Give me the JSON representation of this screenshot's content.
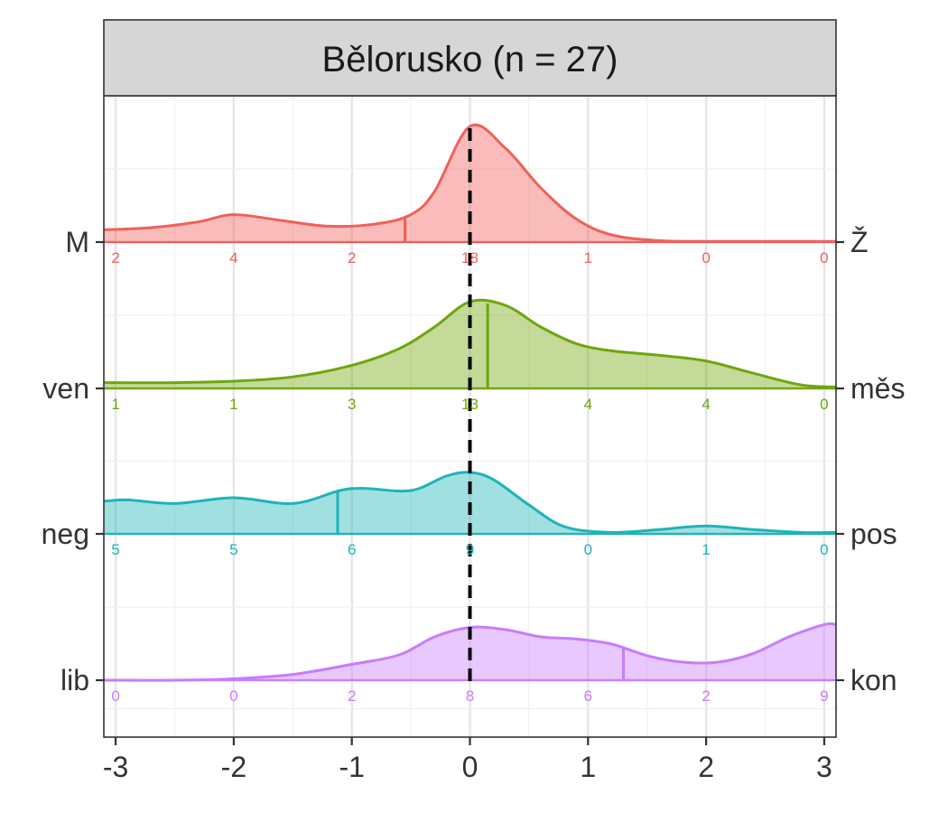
{
  "chart_data": {
    "type": "ridgeline",
    "title": "Bělorusko (n = 27)",
    "xlim": [
      -3.1,
      3.1
    ],
    "x_ticks": [
      -3,
      -2,
      -1,
      0,
      1,
      2,
      3
    ],
    "x_tick_labels": [
      "-3",
      "-2",
      "-1",
      "0",
      "1",
      "2",
      "3"
    ],
    "count_x": [
      -3,
      -2,
      -1,
      0,
      1,
      2,
      3
    ],
    "reference_line_x": 0,
    "grid": true,
    "series": [
      {
        "left_label": "lib",
        "right_label": "kon",
        "color": "#c77cff",
        "counts": [
          0,
          0,
          2,
          8,
          6,
          2,
          9
        ],
        "mean": 1.3,
        "density_x": [
          -3.1,
          -2.5,
          -2.0,
          -1.5,
          -1.0,
          -0.6,
          -0.3,
          0.0,
          0.3,
          0.6,
          0.9,
          1.2,
          1.5,
          1.8,
          2.1,
          2.4,
          2.7,
          3.0,
          3.1
        ],
        "density_y": [
          0.0,
          0.0,
          0.02,
          0.08,
          0.22,
          0.35,
          0.6,
          0.73,
          0.7,
          0.6,
          0.57,
          0.5,
          0.34,
          0.25,
          0.25,
          0.37,
          0.6,
          0.77,
          0.77
        ]
      },
      {
        "left_label": "neg",
        "right_label": "pos",
        "color": "#1eb4b8",
        "counts": [
          5,
          5,
          6,
          9,
          0,
          1,
          0
        ],
        "mean": -1.12,
        "density_x": [
          -3.1,
          -2.9,
          -2.5,
          -2.0,
          -1.5,
          -1.1,
          -0.9,
          -0.5,
          -0.2,
          0.0,
          0.2,
          0.5,
          0.8,
          1.2,
          1.6,
          2.0,
          2.4,
          2.8,
          3.1
        ],
        "density_y": [
          0.45,
          0.47,
          0.42,
          0.5,
          0.42,
          0.6,
          0.63,
          0.6,
          0.8,
          0.85,
          0.75,
          0.4,
          0.1,
          0.02,
          0.06,
          0.11,
          0.06,
          0.02,
          0.02
        ]
      },
      {
        "left_label": "ven",
        "right_label": "měs",
        "color": "#6fa60d",
        "counts": [
          1,
          1,
          3,
          13,
          4,
          4,
          0
        ],
        "mean": 0.15,
        "density_x": [
          -3.1,
          -2.5,
          -2.0,
          -1.5,
          -1.0,
          -0.6,
          -0.3,
          0.0,
          0.3,
          0.6,
          0.9,
          1.2,
          1.6,
          2.0,
          2.4,
          2.8,
          3.1
        ],
        "density_y": [
          0.08,
          0.08,
          0.1,
          0.16,
          0.32,
          0.55,
          0.85,
          1.2,
          1.15,
          0.85,
          0.62,
          0.52,
          0.46,
          0.38,
          0.21,
          0.05,
          0.02
        ]
      },
      {
        "left_label": "M",
        "right_label": "Ž",
        "color": "#f0605a",
        "counts": [
          2,
          4,
          2,
          18,
          1,
          0,
          0
        ],
        "mean": -0.55,
        "density_x": [
          -3.1,
          -2.7,
          -2.3,
          -2.0,
          -1.6,
          -1.2,
          -0.8,
          -0.5,
          -0.3,
          0.0,
          0.3,
          0.6,
          0.9,
          1.2,
          1.6,
          2.0,
          2.4,
          2.8,
          3.1
        ],
        "density_y": [
          0.17,
          0.2,
          0.28,
          0.38,
          0.3,
          0.22,
          0.25,
          0.38,
          0.7,
          1.6,
          1.3,
          0.75,
          0.32,
          0.1,
          0.02,
          0.01,
          0.01,
          0.01,
          0.01
        ]
      }
    ]
  }
}
